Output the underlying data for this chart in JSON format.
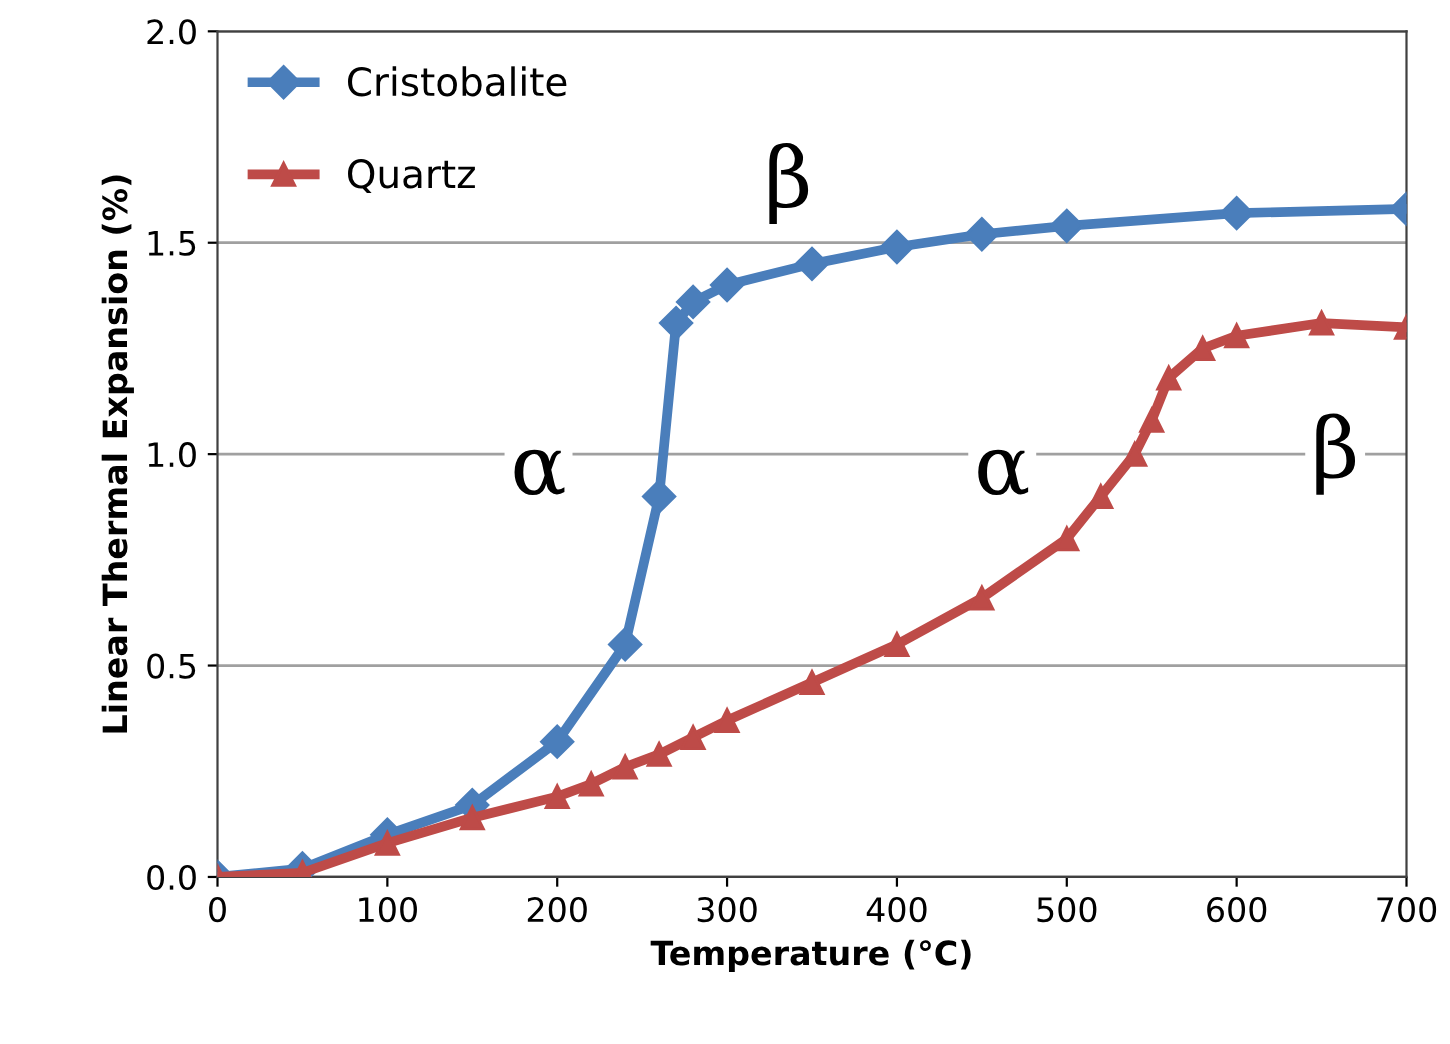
{
  "chart_data": {
    "type": "line",
    "xlabel": "Temperature (°C)",
    "ylabel": "Linear Thermal Expansion (%)",
    "xlim": [
      0,
      700
    ],
    "xticks": [
      0,
      100,
      200,
      300,
      400,
      500,
      600,
      700
    ],
    "ylim": [
      0,
      2.0
    ],
    "yticks": [
      {
        "value": 0,
        "label": "0.0"
      },
      {
        "value": 0.5,
        "label": "0.5"
      },
      {
        "value": 1.0,
        "label": "1.0"
      },
      {
        "value": 1.5,
        "label": "1.5"
      },
      {
        "value": 2.0,
        "label": "2.0"
      }
    ],
    "grid": "y",
    "legend": "top left",
    "line_style": "solid",
    "series": [
      {
        "name": "Cristobalite",
        "color": "#4a7ebb",
        "marker": "diamond",
        "x": [
          0,
          50,
          100,
          150,
          200,
          240,
          260,
          270,
          280,
          300,
          350,
          400,
          450,
          500,
          600,
          700
        ],
        "values": [
          0,
          0.02,
          0.1,
          0.17,
          0.32,
          0.55,
          0.9,
          1.31,
          1.36,
          1.4,
          1.45,
          1.49,
          1.52,
          1.54,
          1.57,
          1.58
        ]
      },
      {
        "name": "Quartz",
        "color": "#be4b48",
        "marker": "triangle",
        "x": [
          0,
          50,
          100,
          150,
          200,
          220,
          240,
          260,
          280,
          300,
          350,
          400,
          450,
          500,
          520,
          540,
          550,
          560,
          580,
          600,
          650,
          700
        ],
        "values": [
          0,
          0.01,
          0.08,
          0.14,
          0.19,
          0.22,
          0.26,
          0.29,
          0.33,
          0.37,
          0.46,
          0.55,
          0.66,
          0.8,
          0.9,
          1.0,
          1.08,
          1.18,
          1.25,
          1.28,
          1.31,
          1.3
        ]
      }
    ],
    "annotations": [
      "α",
      "β",
      "α",
      "β"
    ]
  }
}
